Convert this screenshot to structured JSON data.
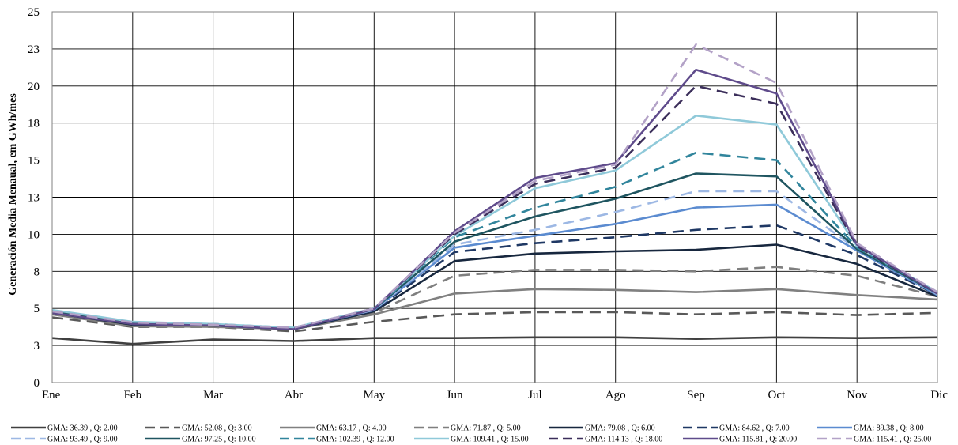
{
  "chart_data": {
    "type": "line",
    "title": "",
    "xlabel": "",
    "ylabel": "Generación Media Menaual, em GWh/mes",
    "ylim": [
      0,
      25
    ],
    "yticks": [
      0,
      2.5,
      5,
      7.5,
      10,
      12.5,
      15,
      17.5,
      20,
      22.5,
      25
    ],
    "ytick_labels": [
      "0",
      "3",
      "5",
      "8",
      "10",
      "13",
      "15",
      "18",
      "20",
      "23",
      "25"
    ],
    "categories": [
      "Ene",
      "Feb",
      "Mar",
      "Abr",
      "May",
      "Jun",
      "Jul",
      "Ago",
      "Sep",
      "Oct",
      "Nov",
      "Dic"
    ],
    "grid": true,
    "legend_position": "bottom",
    "series": [
      {
        "name": "GMA: 36.39 ,  Q: 2.00",
        "color": "#404040",
        "dash": "solid",
        "values": [
          3.0,
          2.6,
          2.9,
          2.8,
          3.0,
          3.0,
          3.05,
          3.05,
          2.95,
          3.05,
          3.0,
          3.05
        ]
      },
      {
        "name": "GMA: 52.08 ,  Q: 3.00",
        "color": "#595959",
        "dash": "dash",
        "values": [
          4.4,
          3.75,
          3.75,
          3.45,
          4.1,
          4.6,
          4.75,
          4.75,
          4.6,
          4.75,
          4.55,
          4.7
        ]
      },
      {
        "name": "GMA: 63.17 ,  Q: 4.00",
        "color": "#808080",
        "dash": "solid",
        "values": [
          4.6,
          3.8,
          3.75,
          3.6,
          4.6,
          6.0,
          6.3,
          6.25,
          6.1,
          6.3,
          5.9,
          5.6
        ]
      },
      {
        "name": "GMA: 71.87 ,  Q: 5.00",
        "color": "#7f7f7f",
        "dash": "dash",
        "values": [
          4.6,
          3.85,
          3.8,
          3.6,
          4.7,
          7.2,
          7.6,
          7.6,
          7.5,
          7.8,
          7.2,
          5.8
        ]
      },
      {
        "name": "GMA: 79.08 ,  Q: 6.00",
        "color": "#17273e",
        "dash": "solid",
        "values": [
          4.7,
          3.9,
          3.85,
          3.6,
          4.8,
          8.2,
          8.7,
          8.85,
          8.95,
          9.3,
          8.0,
          5.8
        ]
      },
      {
        "name": "GMA: 84.62 ,  Q: 7.00",
        "color": "#1f3864",
        "dash": "dash",
        "values": [
          4.7,
          3.95,
          3.85,
          3.6,
          4.85,
          8.8,
          9.4,
          9.8,
          10.3,
          10.6,
          8.6,
          5.9
        ]
      },
      {
        "name": "GMA: 89.38 ,  Q: 8.00",
        "color": "#5b8bd0",
        "dash": "solid",
        "values": [
          4.8,
          3.95,
          3.9,
          3.65,
          4.9,
          9.1,
          9.9,
          10.7,
          11.8,
          12.0,
          8.9,
          5.9
        ]
      },
      {
        "name": "GMA: 93.49 ,  Q: 9.00",
        "color": "#9db8e4",
        "dash": "dash",
        "values": [
          4.8,
          4.0,
          3.9,
          3.65,
          4.9,
          9.3,
          10.3,
          11.5,
          12.9,
          12.9,
          9.0,
          5.95
        ]
      },
      {
        "name": "GMA: 97.25 ,  Q: 10.00",
        "color": "#1f5560",
        "dash": "solid",
        "values": [
          4.8,
          4.0,
          3.9,
          3.65,
          4.95,
          9.5,
          11.2,
          12.4,
          14.1,
          13.9,
          9.0,
          6.0
        ]
      },
      {
        "name": "GMA: 102.39 ,  Q: 12.00",
        "color": "#31859c",
        "dash": "dash",
        "values": [
          4.85,
          4.05,
          3.95,
          3.7,
          4.95,
          9.8,
          11.8,
          13.2,
          15.5,
          15.0,
          9.1,
          6.05
        ]
      },
      {
        "name": "GMA: 109.41 ,  Q: 15.00",
        "color": "#8fc9d9",
        "dash": "solid",
        "values": [
          4.9,
          4.1,
          3.95,
          3.7,
          5.0,
          9.9,
          13.1,
          14.3,
          18.0,
          17.4,
          9.2,
          6.1
        ]
      },
      {
        "name": "GMA: 114.13 ,  Q: 18.00",
        "color": "#3b2e5a",
        "dash": "dash",
        "values": [
          4.8,
          4.0,
          3.9,
          3.65,
          5.0,
          10.0,
          13.4,
          14.5,
          20.0,
          18.8,
          9.2,
          6.0
        ]
      },
      {
        "name": "GMA: 115.81 ,  Q: 20.00",
        "color": "#5f4b8b",
        "dash": "solid",
        "values": [
          4.7,
          3.95,
          3.85,
          3.6,
          4.95,
          10.2,
          13.8,
          14.8,
          21.1,
          19.5,
          9.3,
          6.0
        ]
      },
      {
        "name": "GMA: 115.41 ,  Q: 25.00",
        "color": "#b3a2c7",
        "dash": "dash",
        "values": [
          4.8,
          4.05,
          3.9,
          3.7,
          5.0,
          10.1,
          13.6,
          14.7,
          22.8,
          20.2,
          9.4,
          6.1
        ]
      }
    ]
  }
}
